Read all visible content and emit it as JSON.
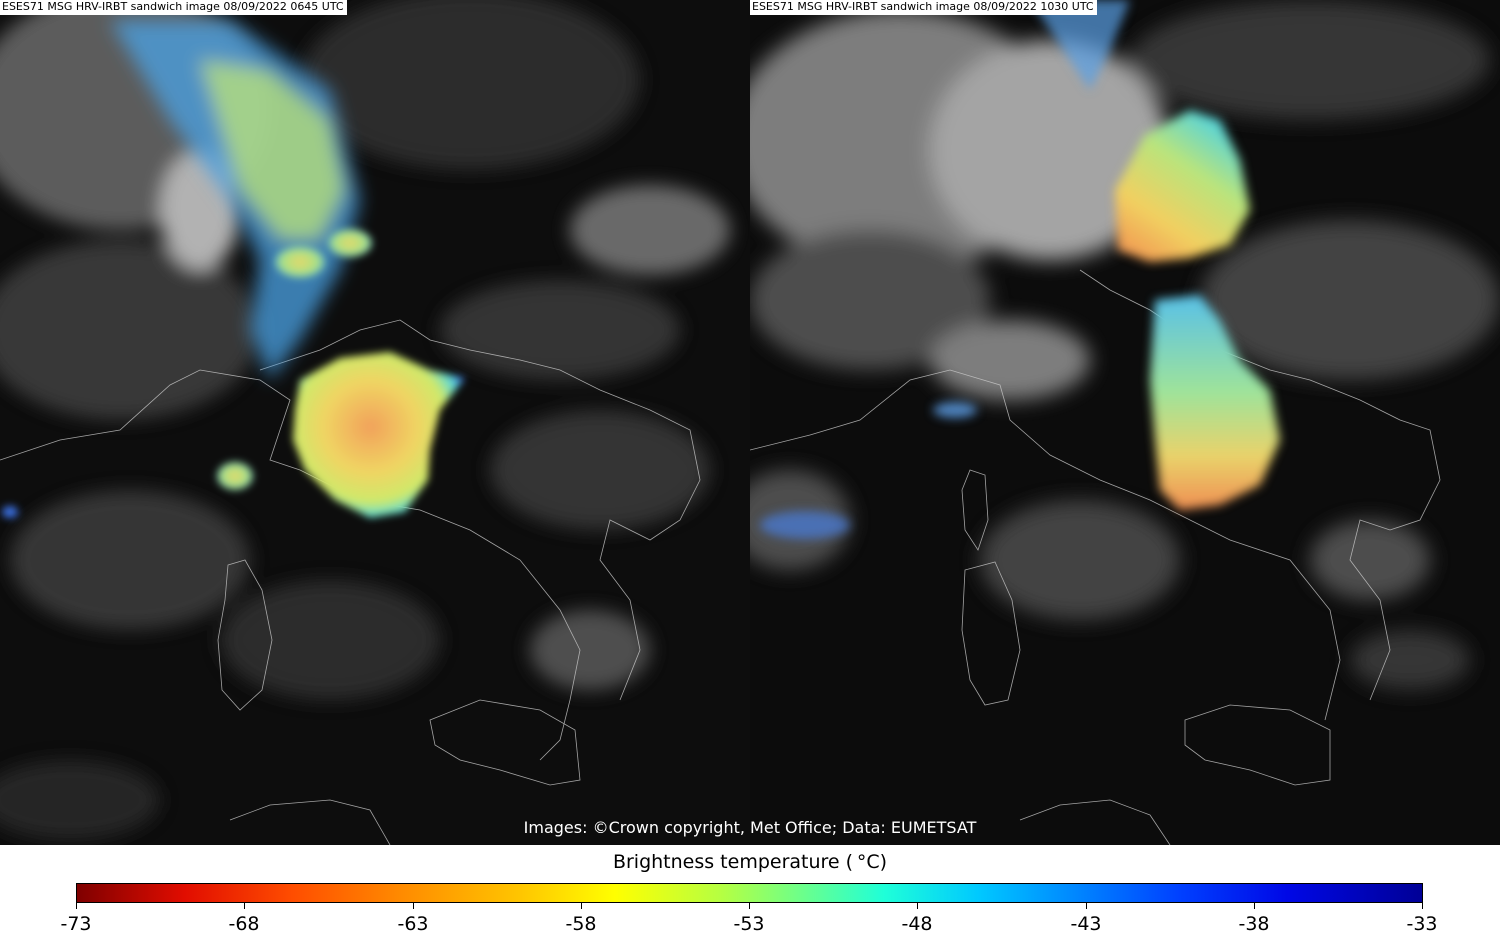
{
  "panels": {
    "left_title": "ESES71 MSG HRV-IRBT sandwich image 08/09/2022 0645 UTC",
    "right_title": "ESES71 MSG HRV-IRBT sandwich image 08/09/2022 1030 UTC"
  },
  "credit": "Images: ©Crown copyright, Met Office; Data: EUMETSAT",
  "colorbar": {
    "label": "Brightness temperature ( °C)",
    "ticks": [
      "-73",
      "-68",
      "-63",
      "-58",
      "-53",
      "-48",
      "-43",
      "-38",
      "-33"
    ],
    "range": [
      -73,
      -33
    ],
    "colormap": "jet_r"
  }
}
